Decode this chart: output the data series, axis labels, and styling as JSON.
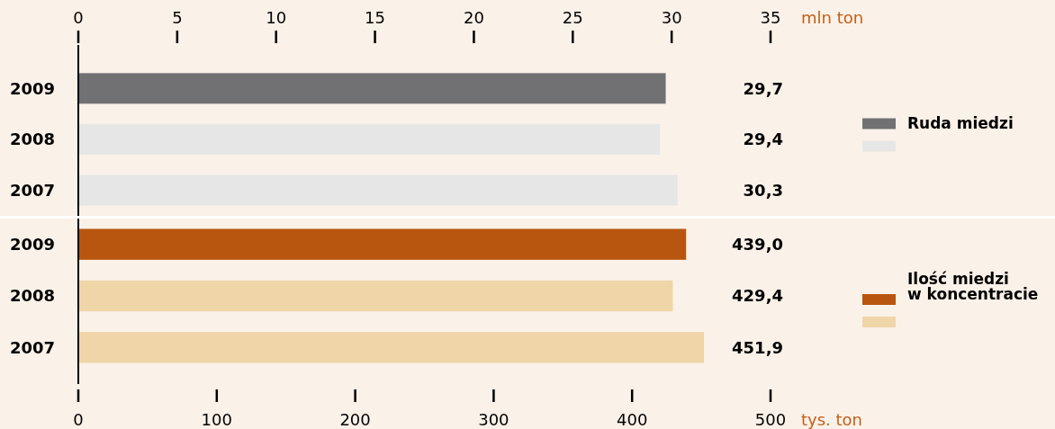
{
  "chart_data": [
    {
      "type": "bar",
      "orientation": "horizontal",
      "categories": [
        "2009",
        "2008",
        "2007"
      ],
      "series": [
        {
          "name": "Ruda miedzi",
          "values": [
            29.7,
            29.4,
            30.3
          ],
          "colors": [
            "#717073",
            "#e6e6e6",
            "#e6e6e6"
          ],
          "value_labels": [
            "29,7",
            "29,4",
            "30,3"
          ]
        }
      ],
      "x2lim": [
        0,
        35
      ],
      "x2ticks": [
        0,
        5,
        10,
        15,
        20,
        25,
        30,
        35
      ],
      "x2label": "mln ton",
      "legend": "right"
    },
    {
      "type": "bar",
      "orientation": "horizontal",
      "categories": [
        "2009",
        "2008",
        "2007"
      ],
      "series": [
        {
          "name": "Ilość miedzi w koncentracie",
          "values": [
            439.0,
            429.4,
            451.9
          ],
          "colors": [
            "#b8560f",
            "#f0d5a8",
            "#f0d5a8"
          ],
          "value_labels": [
            "439,0",
            "429,4",
            "451,9"
          ]
        }
      ],
      "xlim": [
        0,
        500
      ],
      "xticks": [
        0,
        100,
        200,
        300,
        400,
        500
      ],
      "xlabel": "tys. ton",
      "legend": "right"
    }
  ]
}
